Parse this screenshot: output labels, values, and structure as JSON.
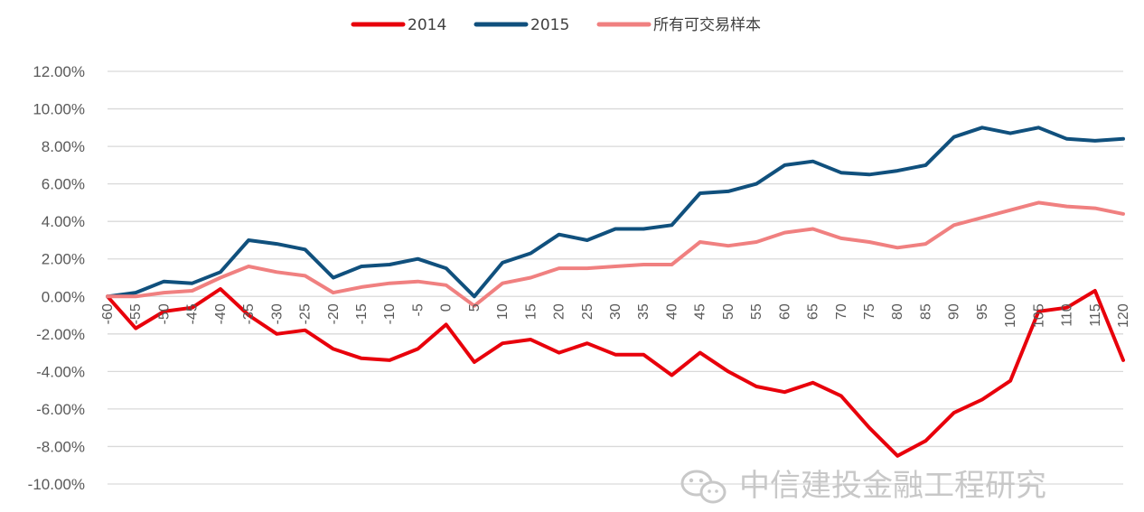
{
  "legend": [
    {
      "label": "2014",
      "color": "#e8000b"
    },
    {
      "label": "2015",
      "color": "#10507d"
    },
    {
      "label": "所有可交易样本",
      "color": "#f08080"
    }
  ],
  "watermark": {
    "text": "中信建投金融工程研究",
    "icon": "wechat-icon"
  },
  "chart_data": {
    "type": "line",
    "grid": true,
    "legend_position": "top",
    "ylim": [
      -0.1,
      0.12
    ],
    "xlim": [
      -60,
      120
    ],
    "y_ticks": [
      "12.00%",
      "10.00%",
      "8.00%",
      "6.00%",
      "4.00%",
      "2.00%",
      "0.00%",
      "-2.00%",
      "-4.00%",
      "-6.00%",
      "-8.00%",
      "-10.00%"
    ],
    "x_ticks": [
      "-60",
      "-55",
      "-50",
      "-45",
      "-40",
      "-35",
      "-30",
      "-25",
      "-20",
      "-15",
      "-10",
      "-5",
      "0",
      "5",
      "10",
      "15",
      "20",
      "25",
      "30",
      "35",
      "40",
      "45",
      "50",
      "55",
      "60",
      "65",
      "70",
      "75",
      "80",
      "85",
      "90",
      "95",
      "100",
      "105",
      "110",
      "115",
      "120"
    ],
    "x": [
      -60,
      -55,
      -50,
      -45,
      -40,
      -35,
      -30,
      -25,
      -20,
      -15,
      -10,
      -5,
      0,
      5,
      10,
      15,
      20,
      25,
      30,
      35,
      40,
      45,
      50,
      55,
      60,
      65,
      70,
      75,
      80,
      85,
      90,
      95,
      100,
      105,
      110,
      115,
      120
    ],
    "series": [
      {
        "name": "2014",
        "color": "#e8000b",
        "values": [
          0.0,
          -0.017,
          -0.008,
          -0.006,
          0.004,
          -0.01,
          -0.02,
          -0.018,
          -0.028,
          -0.033,
          -0.034,
          -0.028,
          -0.015,
          -0.035,
          -0.025,
          -0.023,
          -0.03,
          -0.025,
          -0.031,
          -0.031,
          -0.042,
          -0.03,
          -0.04,
          -0.048,
          -0.051,
          -0.046,
          -0.053,
          -0.07,
          -0.085,
          -0.077,
          -0.062,
          -0.055,
          -0.045,
          -0.008,
          -0.006,
          0.003,
          -0.034
        ]
      },
      {
        "name": "2015",
        "color": "#10507d",
        "values": [
          0.0,
          0.002,
          0.008,
          0.007,
          0.013,
          0.03,
          0.028,
          0.025,
          0.01,
          0.016,
          0.017,
          0.02,
          0.015,
          0.0,
          0.018,
          0.023,
          0.033,
          0.03,
          0.036,
          0.036,
          0.038,
          0.055,
          0.056,
          0.06,
          0.07,
          0.072,
          0.066,
          0.065,
          0.067,
          0.07,
          0.085,
          0.09,
          0.087,
          0.09,
          0.084,
          0.083,
          0.084
        ]
      },
      {
        "name": "所有可交易样本",
        "color": "#f08080",
        "values": [
          0.0,
          0.0,
          0.002,
          0.003,
          0.01,
          0.016,
          0.013,
          0.011,
          0.002,
          0.005,
          0.007,
          0.008,
          0.006,
          -0.005,
          0.007,
          0.01,
          0.015,
          0.015,
          0.016,
          0.017,
          0.017,
          0.029,
          0.027,
          0.029,
          0.034,
          0.036,
          0.031,
          0.029,
          0.026,
          0.028,
          0.038,
          0.042,
          0.046,
          0.05,
          0.048,
          0.047,
          0.044
        ]
      }
    ]
  }
}
